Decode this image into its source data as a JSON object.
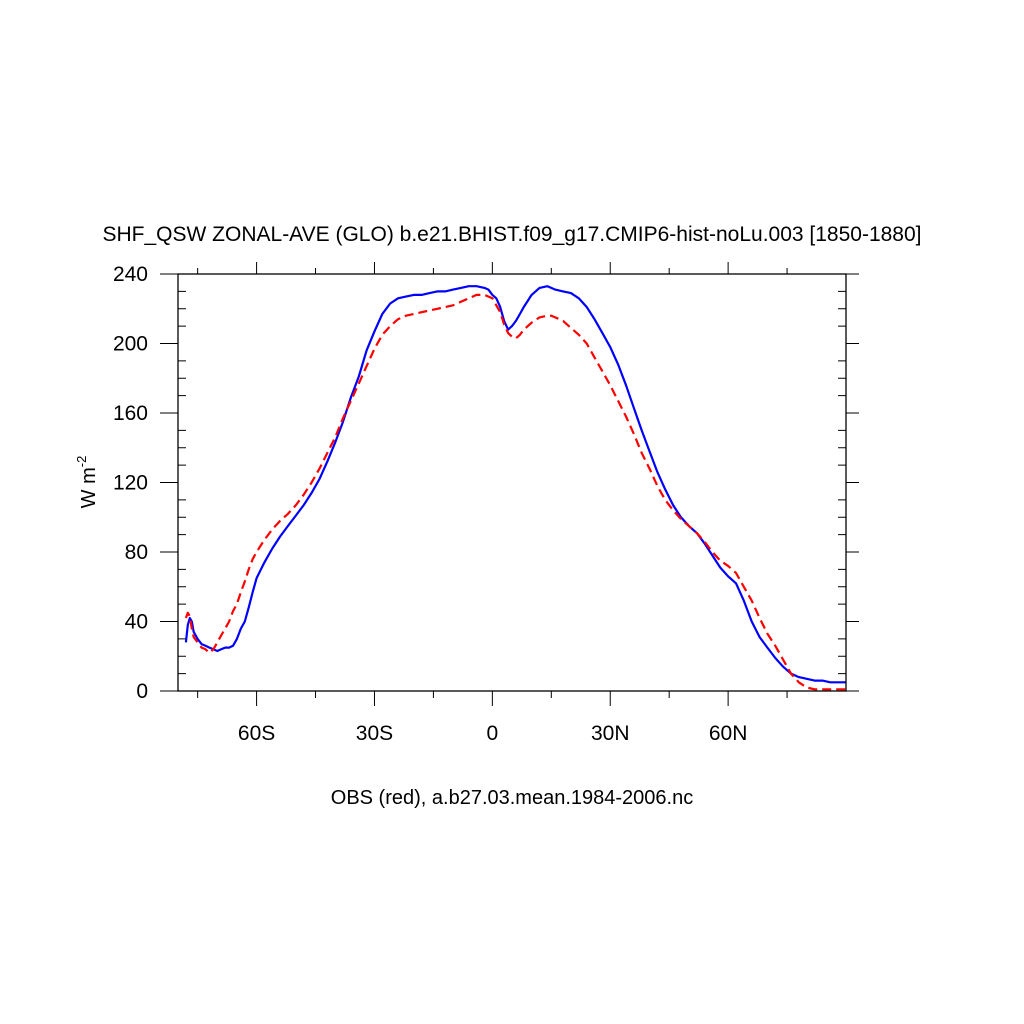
{
  "chart_data": {
    "type": "line",
    "title": "SHF_QSW ZONAL-AVE (GLO) b.e21.BHIST.f09_g17.CMIP6-hist-noLu.003 [1850-1880]",
    "subtitle": "OBS (red), a.b27.03.mean.1984-2006.nc",
    "ylabel": "W m",
    "ylabel_sup": "-2",
    "xlim": [
      -80,
      90
    ],
    "ylim": [
      0,
      240
    ],
    "x_ticks": [
      {
        "value": -60,
        "label": "60S"
      },
      {
        "value": -30,
        "label": "30S"
      },
      {
        "value": 0,
        "label": "0"
      },
      {
        "value": 30,
        "label": "30N"
      },
      {
        "value": 60,
        "label": "60N"
      }
    ],
    "y_ticks": [
      {
        "value": 0,
        "label": "0"
      },
      {
        "value": 40,
        "label": "40"
      },
      {
        "value": 80,
        "label": "80"
      },
      {
        "value": 120,
        "label": "120"
      },
      {
        "value": 160,
        "label": "160"
      },
      {
        "value": 200,
        "label": "200"
      },
      {
        "value": 240,
        "label": "240"
      }
    ],
    "grid": false,
    "series": [
      {
        "color": "#0000ff",
        "dash": "solid",
        "x": [
          -78,
          -77.5,
          -77,
          -76.5,
          -76,
          -75,
          -74,
          -73,
          -72,
          -71,
          -70,
          -69,
          -68,
          -67,
          -66,
          -65,
          -64,
          -63,
          -62,
          -61,
          -60,
          -58,
          -56,
          -54,
          -52,
          -50,
          -48,
          -46,
          -44,
          -42,
          -40,
          -38,
          -36,
          -34,
          -32,
          -30,
          -28,
          -26,
          -24,
          -22,
          -20,
          -18,
          -16,
          -14,
          -12,
          -10,
          -8,
          -6,
          -4,
          -2,
          -1,
          0,
          1,
          2,
          3,
          4,
          5,
          6,
          7,
          8,
          10,
          12,
          14,
          15,
          16,
          18,
          20,
          22,
          24,
          26,
          28,
          30,
          32,
          34,
          36,
          38,
          40,
          42,
          44,
          46,
          48,
          50,
          52,
          54,
          56,
          58,
          60,
          62,
          64,
          66,
          68,
          70,
          72,
          74,
          76,
          78,
          80,
          82,
          84,
          86,
          88,
          90
        ],
        "y": [
          28,
          38,
          42,
          40,
          34,
          30,
          27,
          26,
          25,
          24,
          23,
          24,
          25,
          25,
          26,
          30,
          36,
          40,
          48,
          57,
          65,
          74,
          82,
          89,
          95,
          101,
          107,
          114,
          122,
          132,
          143,
          155,
          169,
          181,
          196,
          207,
          217,
          223,
          226,
          227,
          228,
          228,
          229,
          230,
          230,
          231,
          232,
          233,
          233,
          232,
          231,
          228,
          226,
          221,
          213,
          208,
          210,
          213,
          217,
          221,
          228,
          232,
          233,
          232,
          231,
          230,
          229,
          226,
          221,
          214,
          206,
          198,
          188,
          176,
          163,
          150,
          138,
          126,
          116,
          107,
          100,
          95,
          91,
          85,
          78,
          71,
          66,
          62,
          52,
          40,
          31,
          25,
          19,
          14,
          10,
          8,
          7,
          6,
          6,
          5,
          5,
          5
        ]
      },
      {
        "color": "#ff0000",
        "dash": "dashed",
        "x": [
          -78,
          -77.5,
          -77,
          -76.5,
          -76,
          -75,
          -74,
          -73,
          -72,
          -71,
          -70,
          -69,
          -68,
          -67,
          -66,
          -65,
          -64,
          -63,
          -62,
          -61,
          -60,
          -58,
          -56,
          -54,
          -52,
          -50,
          -48,
          -46,
          -44,
          -42,
          -40,
          -38,
          -36,
          -34,
          -32,
          -30,
          -28,
          -26,
          -24,
          -22,
          -20,
          -18,
          -16,
          -14,
          -12,
          -10,
          -8,
          -6,
          -4,
          -2,
          0,
          1,
          2,
          3,
          4,
          5,
          6,
          7,
          8,
          10,
          12,
          14,
          15,
          16,
          18,
          20,
          22,
          24,
          26,
          28,
          30,
          32,
          34,
          36,
          38,
          40,
          42,
          44,
          46,
          48,
          50,
          52,
          54,
          56,
          58,
          60,
          62,
          64,
          66,
          68,
          70,
          72,
          74,
          76,
          78,
          80,
          82,
          84,
          86,
          88,
          90
        ],
        "y": [
          42,
          45,
          43,
          36,
          31,
          28,
          25,
          24,
          22,
          24,
          28,
          32,
          36,
          40,
          46,
          50,
          57,
          63,
          70,
          76,
          80,
          87,
          93,
          98,
          102,
          107,
          113,
          120,
          128,
          137,
          146,
          157,
          167,
          177,
          187,
          197,
          205,
          210,
          214,
          216,
          217,
          218,
          219,
          220,
          221,
          222,
          224,
          226,
          228,
          228,
          226,
          222,
          218,
          211,
          206,
          204,
          203,
          205,
          208,
          212,
          215,
          216,
          216,
          215,
          213,
          209,
          205,
          200,
          192,
          184,
          176,
          167,
          158,
          148,
          137,
          128,
          118,
          110,
          104,
          99,
          95,
          91,
          86,
          80,
          75,
          72,
          68,
          60,
          52,
          42,
          33,
          26,
          18,
          10,
          5,
          2,
          1,
          1,
          1,
          1,
          1
        ]
      }
    ]
  }
}
